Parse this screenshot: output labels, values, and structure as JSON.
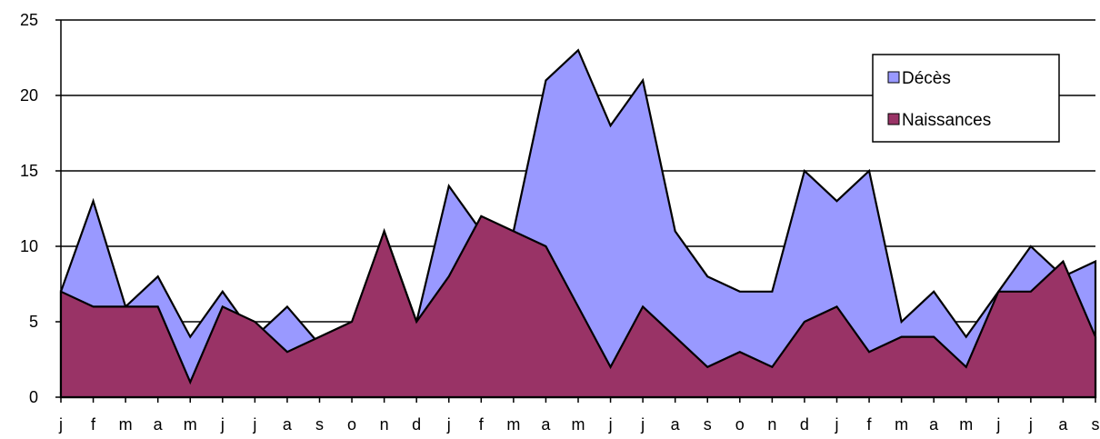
{
  "chart_data": {
    "type": "area",
    "title": "",
    "xlabel": "",
    "ylabel": "",
    "ylim": [
      0,
      25
    ],
    "yticks": [
      0,
      5,
      10,
      15,
      20,
      25
    ],
    "grid": "horizontal",
    "legend_position": "top-right",
    "categories": [
      "j",
      "f",
      "m",
      "a",
      "m",
      "j",
      "j",
      "a",
      "s",
      "o",
      "n",
      "d",
      "j",
      "f",
      "m",
      "a",
      "m",
      "j",
      "j",
      "a",
      "s",
      "o",
      "n",
      "d",
      "j",
      "f",
      "m",
      "a",
      "m",
      "j",
      "j",
      "a",
      "s"
    ],
    "series": [
      {
        "name": "Décès",
        "color": "#9999ff",
        "values": [
          7,
          13,
          6,
          8,
          4,
          7,
          4,
          6,
          3.5,
          4.5,
          11,
          5,
          14,
          11,
          11,
          21,
          23,
          18,
          21,
          11,
          8,
          7,
          7,
          15,
          13,
          15,
          5,
          7,
          4,
          7,
          10,
          8,
          9
        ]
      },
      {
        "name": "Naissances",
        "color": "#993366",
        "values": [
          7,
          6,
          6,
          6,
          1,
          6,
          5,
          3,
          4,
          5,
          11,
          5,
          8,
          12,
          11,
          10,
          6,
          2,
          6,
          4,
          2,
          3,
          2,
          5,
          6,
          3,
          4,
          4,
          2,
          7,
          7,
          9,
          4
        ]
      }
    ]
  }
}
